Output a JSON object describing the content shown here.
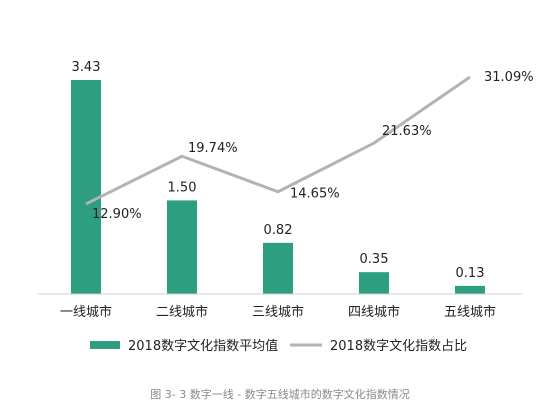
{
  "chart_data": {
    "type": "bar",
    "categories": [
      "一线城市",
      "二线城市",
      "三线城市",
      "四线城市",
      "五线城市"
    ],
    "series": [
      {
        "name": "2018数字文化指数平均值",
        "kind": "bar",
        "color": "#2e9e80",
        "values": [
          3.43,
          1.5,
          0.82,
          0.35,
          0.13
        ],
        "labels": [
          "3.43",
          "1.50",
          "0.82",
          "0.35",
          "0.13"
        ]
      },
      {
        "name": "2018数字文化指数占比",
        "kind": "line",
        "color": "#b3b3b3",
        "values": [
          12.9,
          19.74,
          14.65,
          21.63,
          31.09
        ],
        "labels": [
          "12.90%",
          "19.74%",
          "14.65%",
          "21.63%",
          "31.09%"
        ]
      }
    ],
    "ylim_bar": [
      0,
      3.6
    ],
    "ylim_line": [
      0,
      36
    ],
    "legend_position": "bottom",
    "grid": false
  },
  "caption": "图 3- 3 数字一线 - 数字五线城市的数字文化指数情况"
}
